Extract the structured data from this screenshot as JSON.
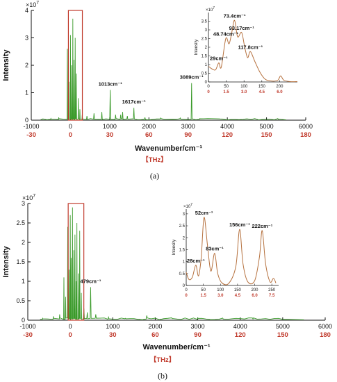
{
  "colors": {
    "main_line": "#3a9a2a",
    "inset_line": "#b5703d",
    "highlight": "#c0392b",
    "axis": "#111111"
  },
  "chart_data": [
    {
      "type": "line",
      "panel_label": "(a)",
      "xlabel": "Wavenumber/cm⁻¹",
      "ylabel": "Intensity",
      "y_multiplier": "×10",
      "y_multiplier_exp": "7",
      "xlim": [
        -1000,
        6000
      ],
      "ylim": [
        0,
        4
      ],
      "x_ticks": [
        "-1000",
        "0",
        "1000",
        "2000",
        "3000",
        "4000",
        "5000",
        "6000"
      ],
      "y_ticks": [
        "0",
        "1",
        "2",
        "3",
        "4"
      ],
      "thz_ticks": [
        "-30",
        "0",
        "30",
        "60",
        "90",
        "120",
        "150",
        "180"
      ],
      "thz_label": "【THz】",
      "highlight_box": {
        "x0": 0,
        "x1": 250,
        "y0": 0,
        "y1": 4
      },
      "peaks": [
        {
          "x": -700,
          "y": 0.05
        },
        {
          "x": -500,
          "y": 0.06
        },
        {
          "x": -300,
          "y": 0.1
        },
        {
          "x": -80,
          "y": 2.6
        },
        {
          "x": -40,
          "y": 1.4
        },
        {
          "x": 0,
          "y": 3.1
        },
        {
          "x": 30,
          "y": 2.0
        },
        {
          "x": 60,
          "y": 3.7
        },
        {
          "x": 90,
          "y": 2.2
        },
        {
          "x": 120,
          "y": 3.0
        },
        {
          "x": 150,
          "y": 1.7
        },
        {
          "x": 200,
          "y": 0.8
        },
        {
          "x": 240,
          "y": 0.4
        },
        {
          "x": 300,
          "y": 0.2
        },
        {
          "x": 420,
          "y": 0.15
        },
        {
          "x": 600,
          "y": 0.25
        },
        {
          "x": 800,
          "y": 0.3
        },
        {
          "x": 1013,
          "y": 1.1
        },
        {
          "x": 1150,
          "y": 0.2
        },
        {
          "x": 1280,
          "y": 0.2
        },
        {
          "x": 1330,
          "y": 0.3
        },
        {
          "x": 1450,
          "y": 0.15
        },
        {
          "x": 1617,
          "y": 0.45
        },
        {
          "x": 1900,
          "y": 0.1
        },
        {
          "x": 2300,
          "y": 0.08
        },
        {
          "x": 2800,
          "y": 0.08
        },
        {
          "x": 3089,
          "y": 1.35
        },
        {
          "x": 3300,
          "y": 0.06
        },
        {
          "x": 3800,
          "y": 0.05
        },
        {
          "x": 4500,
          "y": 0.04
        },
        {
          "x": 5300,
          "y": 0.03
        }
      ],
      "annotations": [
        {
          "text": "1013cm⁻¹",
          "x": 1013,
          "y": 1.1
        },
        {
          "text": "1617cm⁻¹",
          "x": 1617,
          "y": 0.45
        },
        {
          "text": "3089cm⁻¹",
          "x": 3089,
          "y": 1.35
        }
      ],
      "inset": {
        "ylabel": "Intensity",
        "y_multiplier": "×10",
        "y_multiplier_exp": "7",
        "xlim": [
          0,
          250
        ],
        "ylim": [
          0,
          4
        ],
        "x_ticks": [
          "0",
          "50",
          "100",
          "150",
          "200"
        ],
        "y_ticks": [
          "0",
          "0.5",
          "1",
          "1.5",
          "2",
          "2.5",
          "3",
          "3.5"
        ],
        "thz_ticks": [
          "0",
          "1.5",
          "3.0",
          "4.5",
          "6.0"
        ],
        "curve": [
          {
            "x": 0,
            "y": 0.9
          },
          {
            "x": 10,
            "y": 0.75
          },
          {
            "x": 20,
            "y": 0.7
          },
          {
            "x": 29,
            "y": 1.1
          },
          {
            "x": 36,
            "y": 0.85
          },
          {
            "x": 48.74,
            "y": 2.5
          },
          {
            "x": 58,
            "y": 2.2
          },
          {
            "x": 66,
            "y": 2.9
          },
          {
            "x": 73.4,
            "y": 3.55
          },
          {
            "x": 82,
            "y": 2.6
          },
          {
            "x": 93.17,
            "y": 2.85
          },
          {
            "x": 102,
            "y": 2.0
          },
          {
            "x": 110,
            "y": 1.4
          },
          {
            "x": 117.8,
            "y": 1.75
          },
          {
            "x": 130,
            "y": 1.2
          },
          {
            "x": 145,
            "y": 0.55
          },
          {
            "x": 160,
            "y": 0.15
          },
          {
            "x": 180,
            "y": 0.05
          },
          {
            "x": 195,
            "y": 0.1
          },
          {
            "x": 203,
            "y": 0.35
          },
          {
            "x": 212,
            "y": 0.1
          },
          {
            "x": 230,
            "y": 0.02
          },
          {
            "x": 250,
            "y": 0.02
          }
        ],
        "annotations": [
          {
            "text": "29cm⁻¹",
            "x": 29,
            "y": 1.1
          },
          {
            "text": "48.74cm⁻¹",
            "x": 48.74,
            "y": 2.5
          },
          {
            "text": "73.4cm⁻¹",
            "x": 73.4,
            "y": 3.55
          },
          {
            "text": "93.17cm⁻¹",
            "x": 93.17,
            "y": 2.85
          },
          {
            "text": "117.8cm⁻¹",
            "x": 117.8,
            "y": 1.75
          }
        ]
      }
    },
    {
      "type": "line",
      "panel_label": "(b)",
      "xlabel": "Wavenumber/cm⁻¹",
      "ylabel": "Intensity",
      "y_multiplier": "×10",
      "y_multiplier_exp": "7",
      "xlim": [
        -1000,
        6000
      ],
      "ylim": [
        0,
        3
      ],
      "x_ticks": [
        "-1000",
        "0",
        "1000",
        "2000",
        "3000",
        "4000",
        "5000",
        "6000"
      ],
      "y_ticks": [
        "0",
        "0.5",
        "1",
        "1.5",
        "2",
        "2.5",
        "3"
      ],
      "thz_ticks": [
        "-30",
        "0",
        "30",
        "60",
        "90",
        "120",
        "150",
        "180"
      ],
      "thz_label": "【THz】",
      "highlight_box": {
        "x0": 0,
        "x1": 270,
        "y0": 0,
        "y1": 3
      },
      "peaks": [
        {
          "x": -650,
          "y": 0.05
        },
        {
          "x": -400,
          "y": 0.1
        },
        {
          "x": -250,
          "y": 0.15
        },
        {
          "x": -150,
          "y": 1.1
        },
        {
          "x": -110,
          "y": 0.6
        },
        {
          "x": -60,
          "y": 2.4
        },
        {
          "x": -30,
          "y": 1.3
        },
        {
          "x": 0,
          "y": 2.7
        },
        {
          "x": 20,
          "y": 1.6
        },
        {
          "x": 52,
          "y": 2.9
        },
        {
          "x": 83,
          "y": 1.8
        },
        {
          "x": 110,
          "y": 2.2
        },
        {
          "x": 140,
          "y": 1.0
        },
        {
          "x": 156,
          "y": 2.5
        },
        {
          "x": 190,
          "y": 1.2
        },
        {
          "x": 222,
          "y": 2.3
        },
        {
          "x": 260,
          "y": 0.7
        },
        {
          "x": 320,
          "y": 0.3
        },
        {
          "x": 400,
          "y": 0.2
        },
        {
          "x": 479,
          "y": 0.85
        },
        {
          "x": 600,
          "y": 0.15
        },
        {
          "x": 900,
          "y": 0.08
        },
        {
          "x": 1300,
          "y": 0.05
        },
        {
          "x": 1800,
          "y": 0.12
        },
        {
          "x": 2400,
          "y": 0.04
        },
        {
          "x": 3000,
          "y": 0.06
        },
        {
          "x": 3600,
          "y": 0.03
        },
        {
          "x": 4300,
          "y": 0.03
        },
        {
          "x": 5000,
          "y": 0.02
        }
      ],
      "annotations": [
        {
          "text": "479cm⁻¹",
          "x": 479,
          "y": 0.85
        }
      ],
      "inset": {
        "ylabel": "Intensity",
        "y_multiplier": "×10",
        "y_multiplier_exp": "7",
        "xlim": [
          0,
          270
        ],
        "ylim": [
          0,
          3.2
        ],
        "x_ticks": [
          "0",
          "50",
          "100",
          "150",
          "200",
          "250"
        ],
        "y_ticks": [
          "0",
          "0.5",
          "1",
          "1.5",
          "2",
          "2.5",
          "3"
        ],
        "thz_ticks": [
          "0",
          "1.5",
          "3.0",
          "4.5",
          "6.0",
          "7.5"
        ],
        "curve": [
          {
            "x": 0,
            "y": 0.55
          },
          {
            "x": 8,
            "y": 0.25
          },
          {
            "x": 18,
            "y": 0.35
          },
          {
            "x": 28,
            "y": 0.85
          },
          {
            "x": 36,
            "y": 0.4
          },
          {
            "x": 44,
            "y": 1.2
          },
          {
            "x": 52,
            "y": 2.85
          },
          {
            "x": 62,
            "y": 1.7
          },
          {
            "x": 72,
            "y": 0.6
          },
          {
            "x": 83,
            "y": 1.35
          },
          {
            "x": 92,
            "y": 0.5
          },
          {
            "x": 105,
            "y": 0.1
          },
          {
            "x": 125,
            "y": 0.1
          },
          {
            "x": 145,
            "y": 0.8
          },
          {
            "x": 156,
            "y": 2.35
          },
          {
            "x": 166,
            "y": 0.9
          },
          {
            "x": 180,
            "y": 0.15
          },
          {
            "x": 200,
            "y": 0.2
          },
          {
            "x": 214,
            "y": 1.2
          },
          {
            "x": 222,
            "y": 2.3
          },
          {
            "x": 232,
            "y": 0.9
          },
          {
            "x": 245,
            "y": 0.15
          },
          {
            "x": 255,
            "y": 0.3
          },
          {
            "x": 262,
            "y": 0.1
          }
        ],
        "annotations": [
          {
            "text": "28cm⁻¹",
            "x": 28,
            "y": 0.85
          },
          {
            "text": "52cm⁻¹",
            "x": 52,
            "y": 2.85
          },
          {
            "text": "83cm⁻¹",
            "x": 83,
            "y": 1.35
          },
          {
            "text": "156cm⁻¹",
            "x": 156,
            "y": 2.35
          },
          {
            "text": "222cm⁻¹",
            "x": 222,
            "y": 2.3
          }
        ]
      }
    }
  ]
}
